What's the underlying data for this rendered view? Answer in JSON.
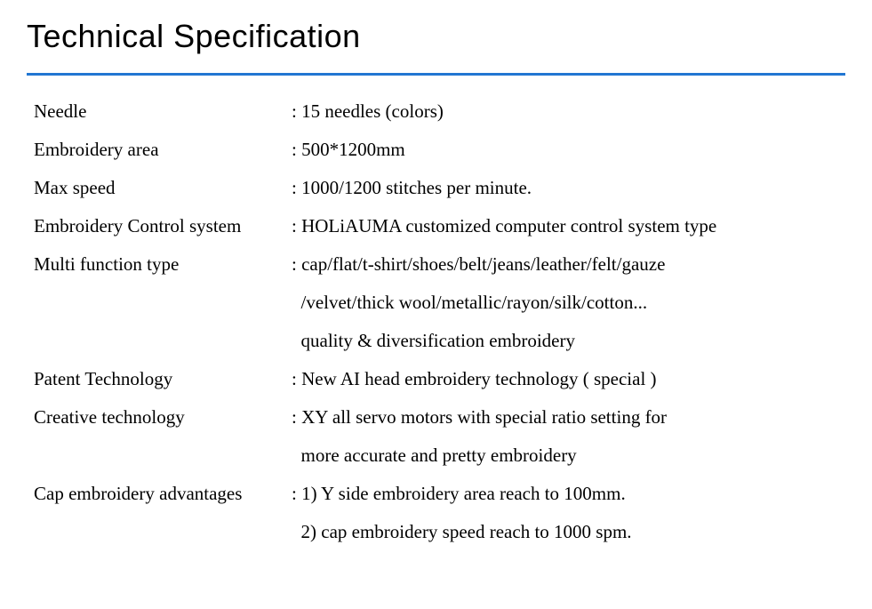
{
  "title": "Technical Specification",
  "divider_color": "#2176d2",
  "specs": {
    "needle": {
      "label": "Needle",
      "value": ": 15 needles (colors)"
    },
    "embroidery_area": {
      "label": "Embroidery area",
      "value": ": 500*1200mm"
    },
    "max_speed": {
      "label": "Max speed",
      "value": ": 1000/1200 stitches per minute."
    },
    "control_system": {
      "label": "Embroidery Control system",
      "value": ": HOLiAUMA customized computer control system type"
    },
    "multi_function": {
      "label": "Multi function type",
      "line1": ": cap/flat/t-shirt/shoes/belt/jeans/leather/felt/gauze",
      "line2": "  /velvet/thick wool/metallic/rayon/silk/cotton...",
      "line3": "  quality & diversification embroidery"
    },
    "patent_tech": {
      "label": "Patent Technology",
      "value": ": New AI head embroidery technology ( special )"
    },
    "creative_tech": {
      "label": "Creative technology",
      "line1": ": XY all servo motors with special ratio setting for",
      "line2": "  more accurate and pretty embroidery"
    },
    "cap_advantages": {
      "label": "Cap embroidery advantages",
      "line1": ": 1) Y side embroidery area reach to 100mm.",
      "line2": "  2) cap embroidery speed reach to 1000 spm."
    }
  }
}
